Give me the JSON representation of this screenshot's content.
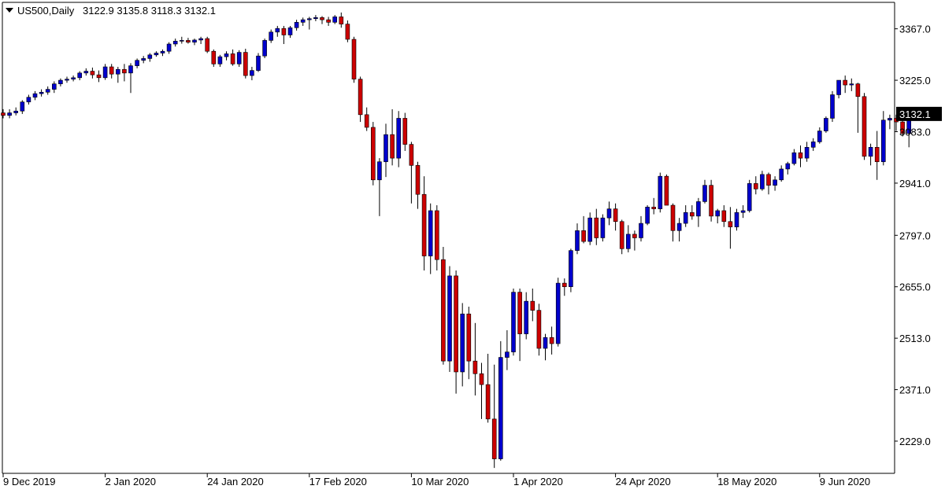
{
  "header": {
    "symbol": "US500,Daily",
    "ohlc": "3122.9 3135.8 3118.3 3132.1",
    "menu_icon": "triangle-down-icon"
  },
  "chart_data": {
    "type": "candlestick",
    "symbol": "US500",
    "timeframe": "Daily",
    "ylim": [
      2140,
      3440
    ],
    "y_ticks": [
      "3367.0",
      "3225.0",
      "3083.0",
      "2941.0",
      "2797.0",
      "2655.0",
      "2513.0",
      "2371.0",
      "2229.0"
    ],
    "y_tick_values": [
      3367,
      3225,
      3083,
      2941,
      2797,
      2655,
      2513,
      2371,
      2229
    ],
    "x_tick_labels": [
      "9 Dec 2019",
      "2 Jan 2020",
      "24 Jan 2020",
      "17 Feb 2020",
      "10 Mar 2020",
      "1 Apr 2020",
      "24 Apr 2020",
      "18 May 2020",
      "9 Jun 2020"
    ],
    "x_tick_indices": [
      0,
      16,
      32,
      48,
      64,
      80,
      96,
      112,
      128
    ],
    "current_price": "3132.1",
    "current_value": 3132.1,
    "colors": {
      "up": "#0000cc",
      "down": "#cc0000",
      "wick": "#000000",
      "price_tag": "#000000"
    },
    "grid": false,
    "candles": [
      [
        3135,
        3145,
        3120,
        3128
      ],
      [
        3128,
        3145,
        3120,
        3135
      ],
      [
        3135,
        3150,
        3128,
        3140
      ],
      [
        3140,
        3170,
        3132,
        3165
      ],
      [
        3165,
        3185,
        3158,
        3178
      ],
      [
        3178,
        3195,
        3170,
        3188
      ],
      [
        3188,
        3200,
        3180,
        3192
      ],
      [
        3192,
        3208,
        3185,
        3200
      ],
      [
        3200,
        3222,
        3190,
        3215
      ],
      [
        3215,
        3230,
        3208,
        3225
      ],
      [
        3225,
        3235,
        3218,
        3228
      ],
      [
        3228,
        3238,
        3222,
        3232
      ],
      [
        3232,
        3250,
        3225,
        3245
      ],
      [
        3245,
        3258,
        3238,
        3250
      ],
      [
        3250,
        3260,
        3230,
        3240
      ],
      [
        3240,
        3252,
        3220,
        3232
      ],
      [
        3232,
        3270,
        3226,
        3262
      ],
      [
        3262,
        3270,
        3230,
        3242
      ],
      [
        3242,
        3262,
        3218,
        3255
      ],
      [
        3255,
        3270,
        3222,
        3245
      ],
      [
        3245,
        3272,
        3190,
        3265
      ],
      [
        3265,
        3285,
        3258,
        3280
      ],
      [
        3280,
        3292,
        3272,
        3285
      ],
      [
        3285,
        3300,
        3276,
        3295
      ],
      [
        3295,
        3305,
        3290,
        3300
      ],
      [
        3300,
        3310,
        3292,
        3305
      ],
      [
        3305,
        3330,
        3298,
        3325
      ],
      [
        3325,
        3340,
        3318,
        3333
      ],
      [
        3333,
        3345,
        3326,
        3335
      ],
      [
        3335,
        3342,
        3326,
        3330
      ],
      [
        3330,
        3340,
        3322,
        3336
      ],
      [
        3336,
        3345,
        3325,
        3340
      ],
      [
        3340,
        3345,
        3300,
        3305
      ],
      [
        3305,
        3310,
        3262,
        3270
      ],
      [
        3270,
        3295,
        3262,
        3290
      ],
      [
        3290,
        3305,
        3280,
        3298
      ],
      [
        3298,
        3310,
        3265,
        3270
      ],
      [
        3270,
        3308,
        3262,
        3302
      ],
      [
        3302,
        3312,
        3230,
        3238
      ],
      [
        3238,
        3262,
        3225,
        3252
      ],
      [
        3252,
        3300,
        3248,
        3292
      ],
      [
        3292,
        3340,
        3286,
        3335
      ],
      [
        3335,
        3365,
        3328,
        3358
      ],
      [
        3358,
        3375,
        3345,
        3368
      ],
      [
        3368,
        3375,
        3325,
        3350
      ],
      [
        3350,
        3375,
        3342,
        3370
      ],
      [
        3370,
        3392,
        3362,
        3385
      ],
      [
        3385,
        3398,
        3375,
        3392
      ],
      [
        3392,
        3400,
        3365,
        3395
      ],
      [
        3395,
        3405,
        3388,
        3398
      ],
      [
        3398,
        3402,
        3380,
        3392
      ],
      [
        3392,
        3400,
        3375,
        3385
      ],
      [
        3385,
        3405,
        3380,
        3400
      ],
      [
        3400,
        3412,
        3370,
        3380
      ],
      [
        3380,
        3390,
        3330,
        3338
      ],
      [
        3338,
        3345,
        3218,
        3228
      ],
      [
        3228,
        3235,
        3110,
        3130
      ],
      [
        3130,
        3150,
        3085,
        3095
      ],
      [
        3095,
        3110,
        2935,
        2950
      ],
      [
        2950,
        3010,
        2850,
        3000
      ],
      [
        3000,
        3105,
        2958,
        3075
      ],
      [
        3075,
        3145,
        2990,
        3010
      ],
      [
        3010,
        3140,
        2985,
        3120
      ],
      [
        3120,
        3135,
        3030,
        3048
      ],
      [
        3048,
        3055,
        2885,
        2990
      ],
      [
        2990,
        3000,
        2870,
        2910
      ],
      [
        2910,
        2960,
        2700,
        2740
      ],
      [
        2740,
        2885,
        2690,
        2865
      ],
      [
        2865,
        2880,
        2700,
        2730
      ],
      [
        2730,
        2765,
        2440,
        2450
      ],
      [
        2450,
        2712,
        2420,
        2685
      ],
      [
        2685,
        2700,
        2360,
        2420
      ],
      [
        2420,
        2610,
        2380,
        2580
      ],
      [
        2580,
        2600,
        2400,
        2450
      ],
      [
        2450,
        2555,
        2355,
        2415
      ],
      [
        2415,
        2445,
        2290,
        2385
      ],
      [
        2385,
        2470,
        2280,
        2290
      ],
      [
        2290,
        2440,
        2155,
        2180
      ],
      [
        2180,
        2505,
        2175,
        2460
      ],
      [
        2460,
        2535,
        2425,
        2475
      ],
      [
        2475,
        2650,
        2465,
        2640
      ],
      [
        2640,
        2650,
        2450,
        2525
      ],
      [
        2525,
        2640,
        2510,
        2615
      ],
      [
        2615,
        2650,
        2560,
        2590
      ],
      [
        2590,
        2608,
        2465,
        2485
      ],
      [
        2485,
        2525,
        2452,
        2515
      ],
      [
        2515,
        2545,
        2468,
        2498
      ],
      [
        2498,
        2680,
        2490,
        2665
      ],
      [
        2665,
        2678,
        2630,
        2655
      ],
      [
        2655,
        2760,
        2640,
        2755
      ],
      [
        2755,
        2830,
        2745,
        2810
      ],
      [
        2810,
        2850,
        2775,
        2780
      ],
      [
        2780,
        2860,
        2770,
        2845
      ],
      [
        2845,
        2870,
        2770,
        2790
      ],
      [
        2790,
        2855,
        2780,
        2845
      ],
      [
        2845,
        2890,
        2825,
        2870
      ],
      [
        2870,
        2885,
        2810,
        2835
      ],
      [
        2835,
        2840,
        2745,
        2760
      ],
      [
        2760,
        2825,
        2750,
        2800
      ],
      [
        2800,
        2810,
        2755,
        2790
      ],
      [
        2790,
        2850,
        2780,
        2830
      ],
      [
        2830,
        2880,
        2825,
        2875
      ],
      [
        2875,
        2900,
        2855,
        2870
      ],
      [
        2870,
        2970,
        2860,
        2960
      ],
      [
        2960,
        2965,
        2890,
        2880
      ],
      [
        2880,
        2885,
        2780,
        2810
      ],
      [
        2810,
        2845,
        2780,
        2830
      ],
      [
        2830,
        2880,
        2820,
        2860
      ],
      [
        2860,
        2880,
        2840,
        2850
      ],
      [
        2850,
        2900,
        2820,
        2890
      ],
      [
        2890,
        2950,
        2885,
        2935
      ],
      [
        2935,
        2950,
        2835,
        2850
      ],
      [
        2850,
        2870,
        2830,
        2865
      ],
      [
        2865,
        2880,
        2820,
        2835
      ],
      [
        2835,
        2875,
        2760,
        2820
      ],
      [
        2820,
        2870,
        2810,
        2860
      ],
      [
        2860,
        2880,
        2845,
        2865
      ],
      [
        2865,
        2950,
        2860,
        2940
      ],
      [
        2940,
        2960,
        2910,
        2925
      ],
      [
        2925,
        2975,
        2920,
        2965
      ],
      [
        2965,
        2970,
        2910,
        2935
      ],
      [
        2935,
        2960,
        2920,
        2950
      ],
      [
        2950,
        2990,
        2945,
        2980
      ],
      [
        2980,
        3000,
        2965,
        2995
      ],
      [
        2995,
        3035,
        2990,
        3025
      ],
      [
        3025,
        3045,
        2985,
        3010
      ],
      [
        3010,
        3055,
        3000,
        3040
      ],
      [
        3040,
        3065,
        3030,
        3055
      ],
      [
        3055,
        3095,
        3050,
        3085
      ],
      [
        3085,
        3125,
        3080,
        3120
      ],
      [
        3120,
        3195,
        3110,
        3185
      ],
      [
        3185,
        3225,
        3175,
        3225
      ],
      [
        3225,
        3238,
        3190,
        3212
      ],
      [
        3212,
        3230,
        3195,
        3215
      ],
      [
        3215,
        3218,
        3080,
        3180
      ],
      [
        3180,
        3190,
        3005,
        3015
      ],
      [
        3015,
        3050,
        2990,
        3040
      ],
      [
        3040,
        3085,
        2950,
        3000
      ],
      [
        3000,
        3140,
        2990,
        3115
      ],
      [
        3115,
        3130,
        3090,
        3120
      ],
      [
        3120,
        3130,
        3085,
        3110
      ],
      [
        3110,
        3125,
        3070,
        3078
      ],
      [
        3078,
        3140,
        3040,
        3120
      ],
      [
        3122.9,
        3135.8,
        3118.3,
        3132.1
      ]
    ]
  }
}
